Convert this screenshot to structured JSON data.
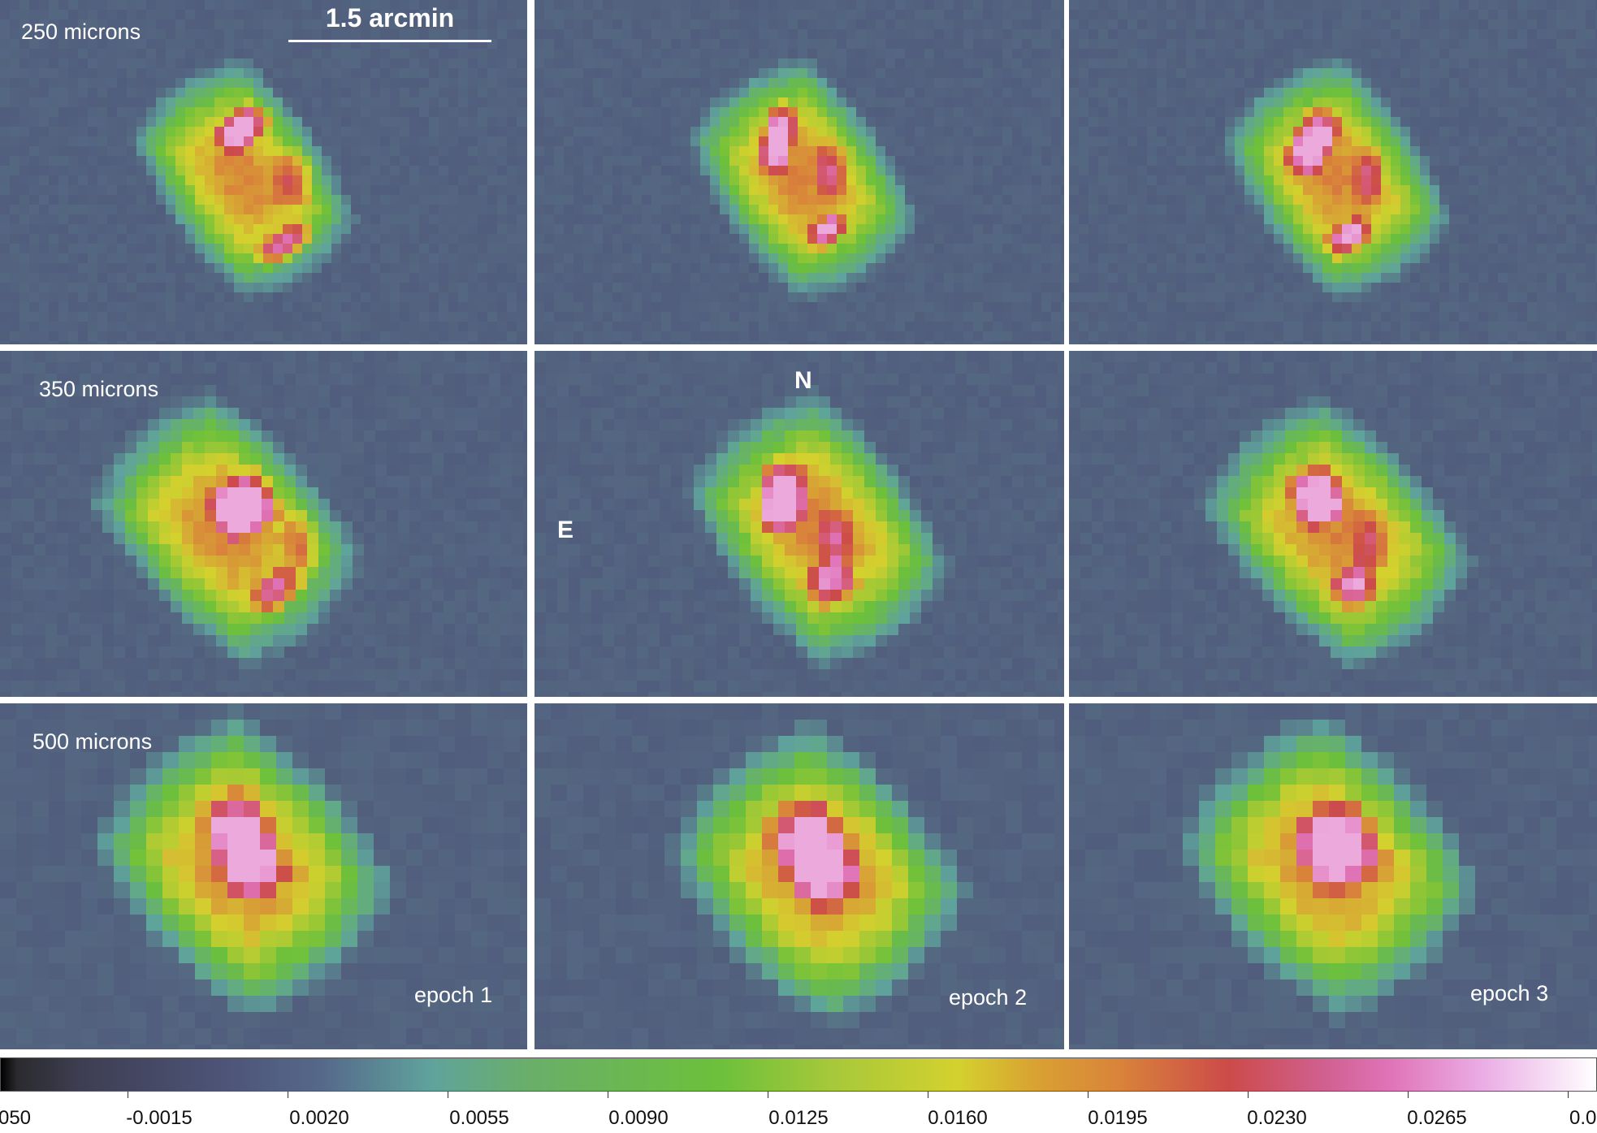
{
  "scale_bar": {
    "label": "1.5 arcmin"
  },
  "rows": [
    {
      "wavelength": "250 microns"
    },
    {
      "wavelength": "350 microns"
    },
    {
      "wavelength": "500 microns"
    }
  ],
  "epochs": [
    "epoch 1",
    "epoch 2",
    "epoch 3"
  ],
  "compass": {
    "north": "N",
    "east": "E"
  },
  "colorbar": {
    "colormap": "heat: dark gray - blue-gray - teal - green - yellow - orange - red - pink - white",
    "tick_labels": [
      "050",
      "-0.0015",
      "0.0020",
      "0.0055",
      "0.0090",
      "0.0125",
      "0.0160",
      "0.0195",
      "0.0230",
      "0.0265",
      "0.0:"
    ]
  },
  "colors": {
    "background": "#4d5478",
    "teal": "#5fa39c",
    "green": "#6cc03b",
    "yellow": "#d4d12e",
    "orange": "#d9843a",
    "red": "#cc4a4a",
    "pink": "#e073b8"
  }
}
